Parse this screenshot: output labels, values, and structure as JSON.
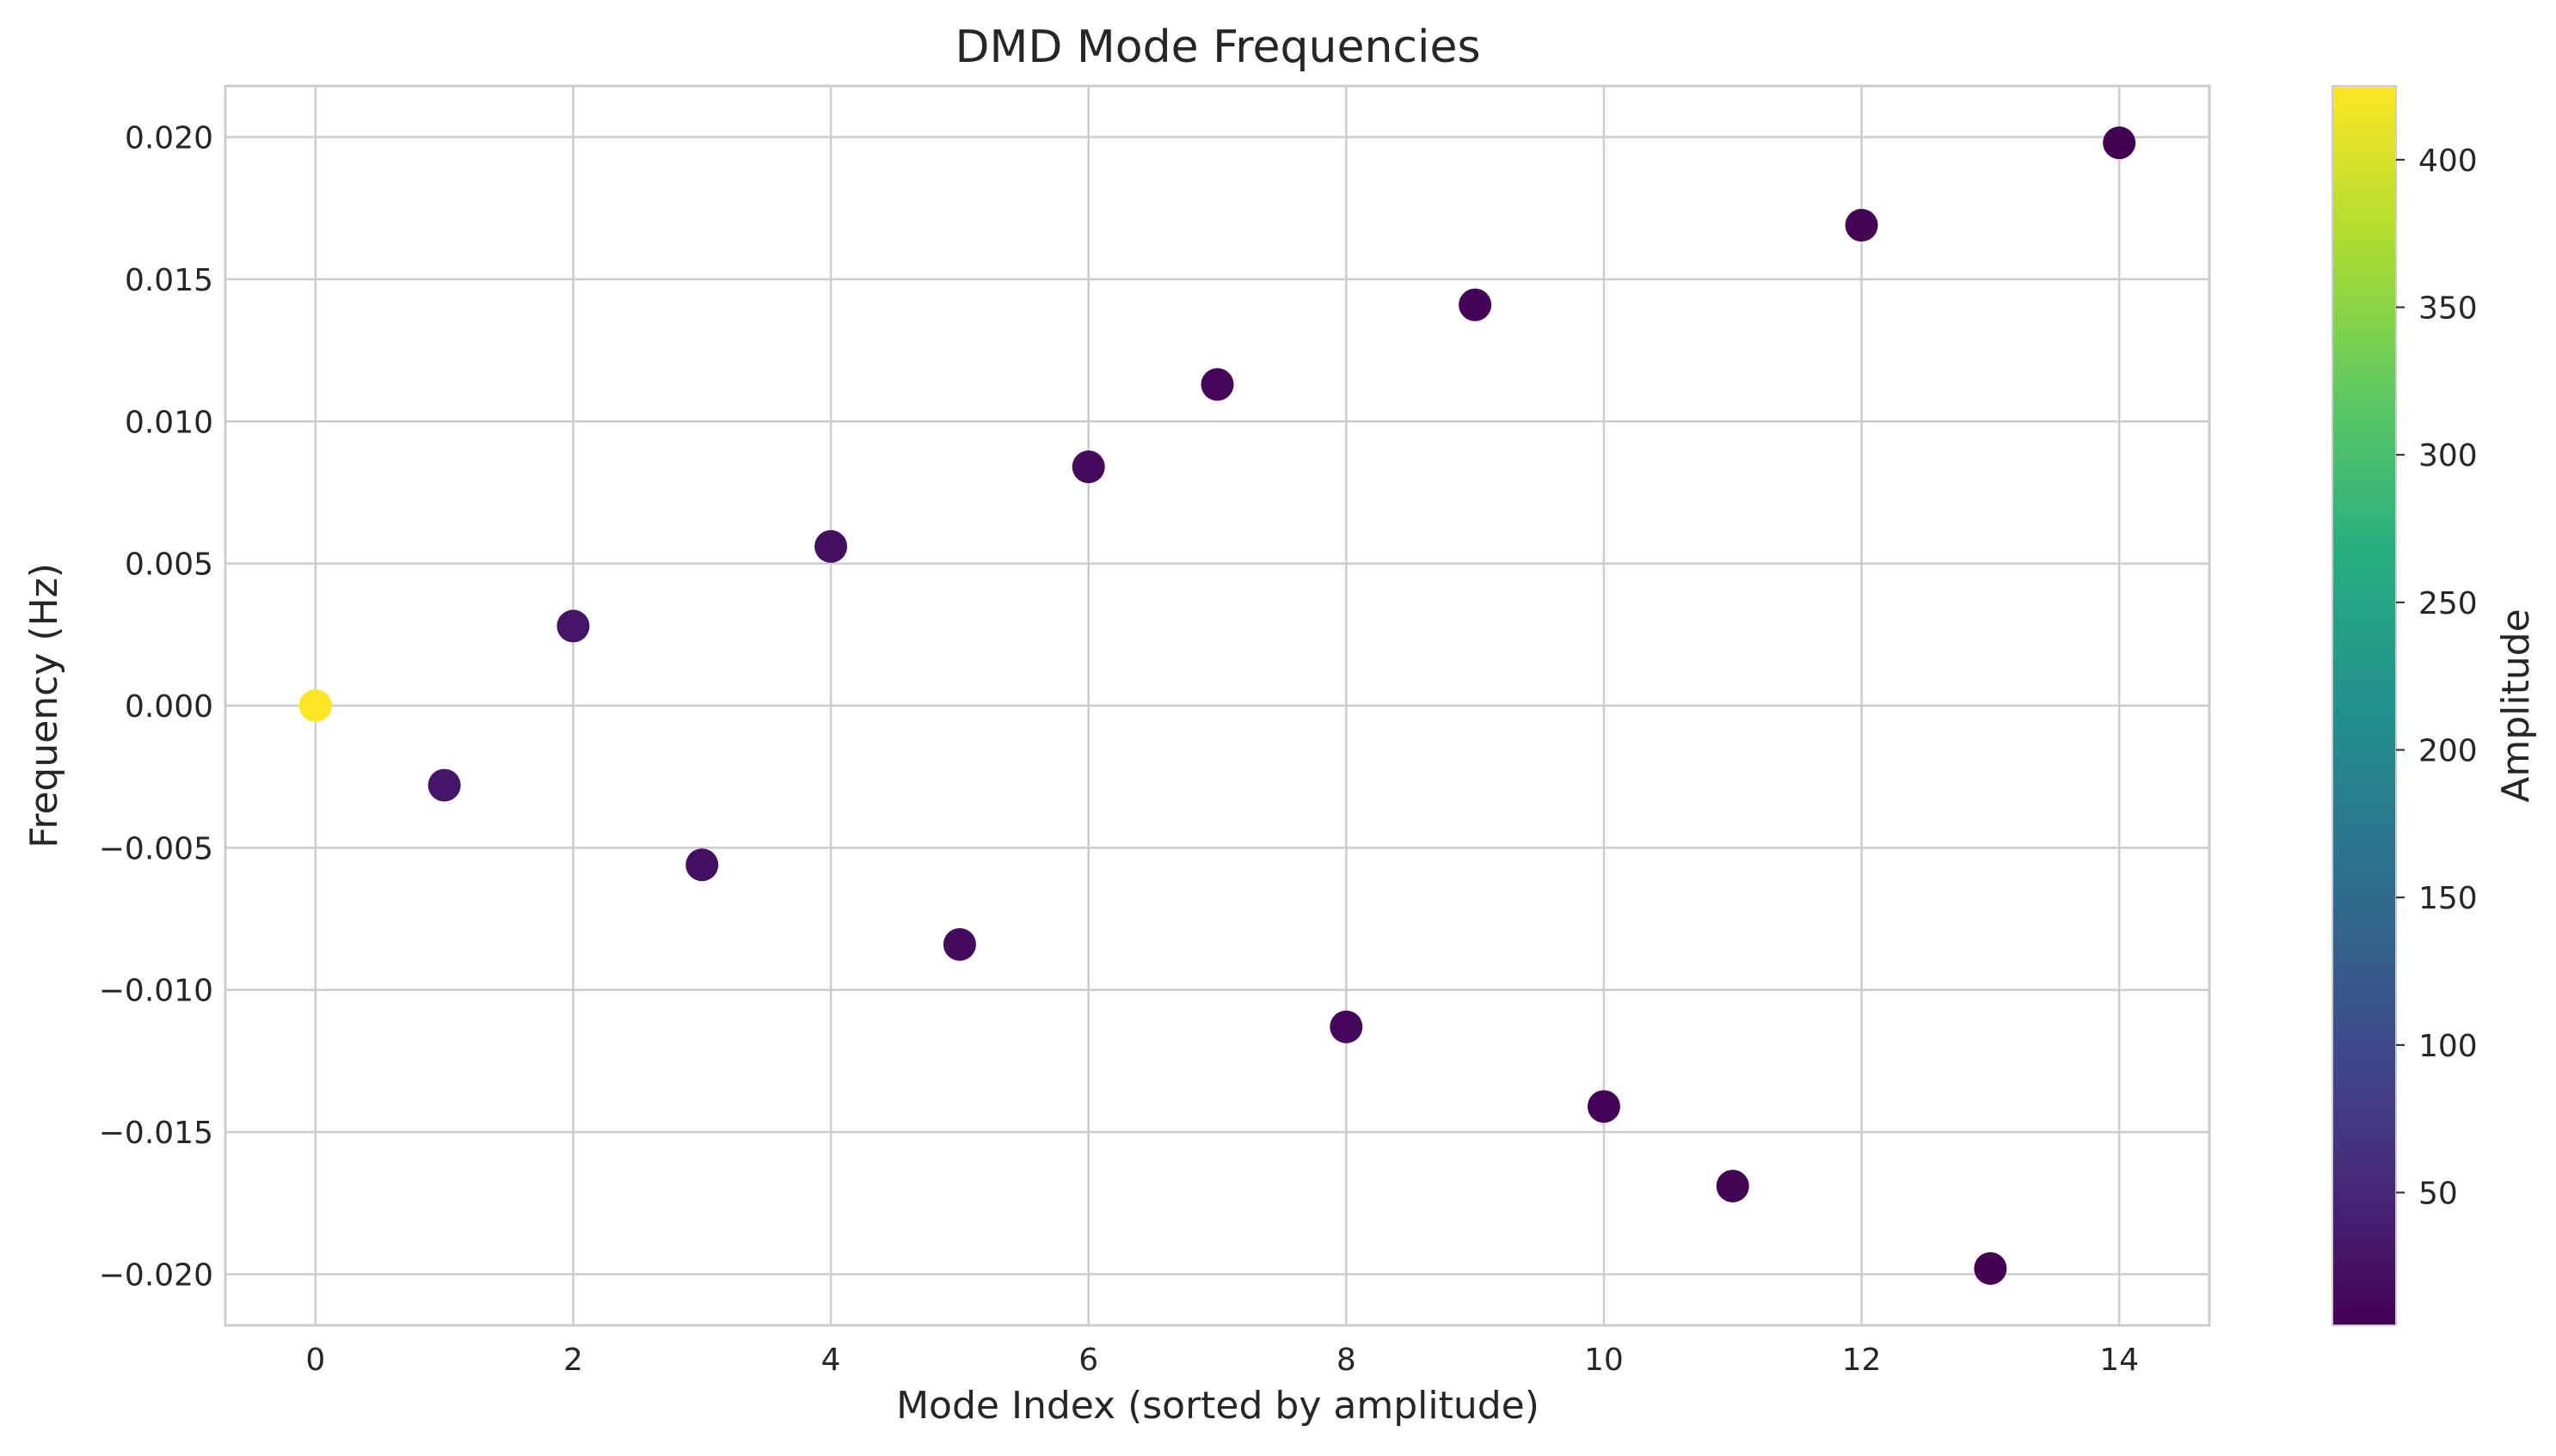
{
  "chart_data": {
    "type": "scatter",
    "title": "DMD Mode Frequencies",
    "xlabel": "Mode Index (sorted by amplitude)",
    "ylabel": "Frequency (Hz)",
    "colorbar_label": "Amplitude",
    "colormap": "viridis",
    "xlim": [
      -0.7,
      14.7
    ],
    "ylim": [
      -0.0218,
      0.0218
    ],
    "x_ticks": [
      0,
      2,
      4,
      6,
      8,
      10,
      12,
      14
    ],
    "y_ticks": [
      0.02,
      0.015,
      0.01,
      0.005,
      0.0,
      -0.005,
      -0.01,
      -0.015,
      -0.02
    ],
    "y_tick_labels": [
      "0.020",
      "0.015",
      "0.010",
      "0.005",
      "0.000",
      "−0.005",
      "−0.010",
      "−0.015",
      "−0.020"
    ],
    "colorbar_range": [
      5,
      425
    ],
    "colorbar_ticks": [
      50,
      100,
      150,
      200,
      250,
      300,
      350,
      400
    ],
    "grid": true,
    "points": [
      {
        "x": 0,
        "y": 0.0,
        "amplitude": 425
      },
      {
        "x": 1,
        "y": -0.0028,
        "amplitude": 30
      },
      {
        "x": 2,
        "y": 0.0028,
        "amplitude": 30
      },
      {
        "x": 3,
        "y": -0.0056,
        "amplitude": 22
      },
      {
        "x": 4,
        "y": 0.0056,
        "amplitude": 22
      },
      {
        "x": 5,
        "y": -0.0084,
        "amplitude": 16
      },
      {
        "x": 6,
        "y": 0.0084,
        "amplitude": 16
      },
      {
        "x": 7,
        "y": 0.0113,
        "amplitude": 12
      },
      {
        "x": 8,
        "y": -0.0113,
        "amplitude": 12
      },
      {
        "x": 9,
        "y": 0.0141,
        "amplitude": 9
      },
      {
        "x": 10,
        "y": -0.0141,
        "amplitude": 9
      },
      {
        "x": 11,
        "y": -0.0169,
        "amplitude": 8
      },
      {
        "x": 12,
        "y": 0.0169,
        "amplitude": 8
      },
      {
        "x": 13,
        "y": -0.0198,
        "amplitude": 6
      },
      {
        "x": 14,
        "y": 0.0198,
        "amplitude": 6
      }
    ]
  }
}
